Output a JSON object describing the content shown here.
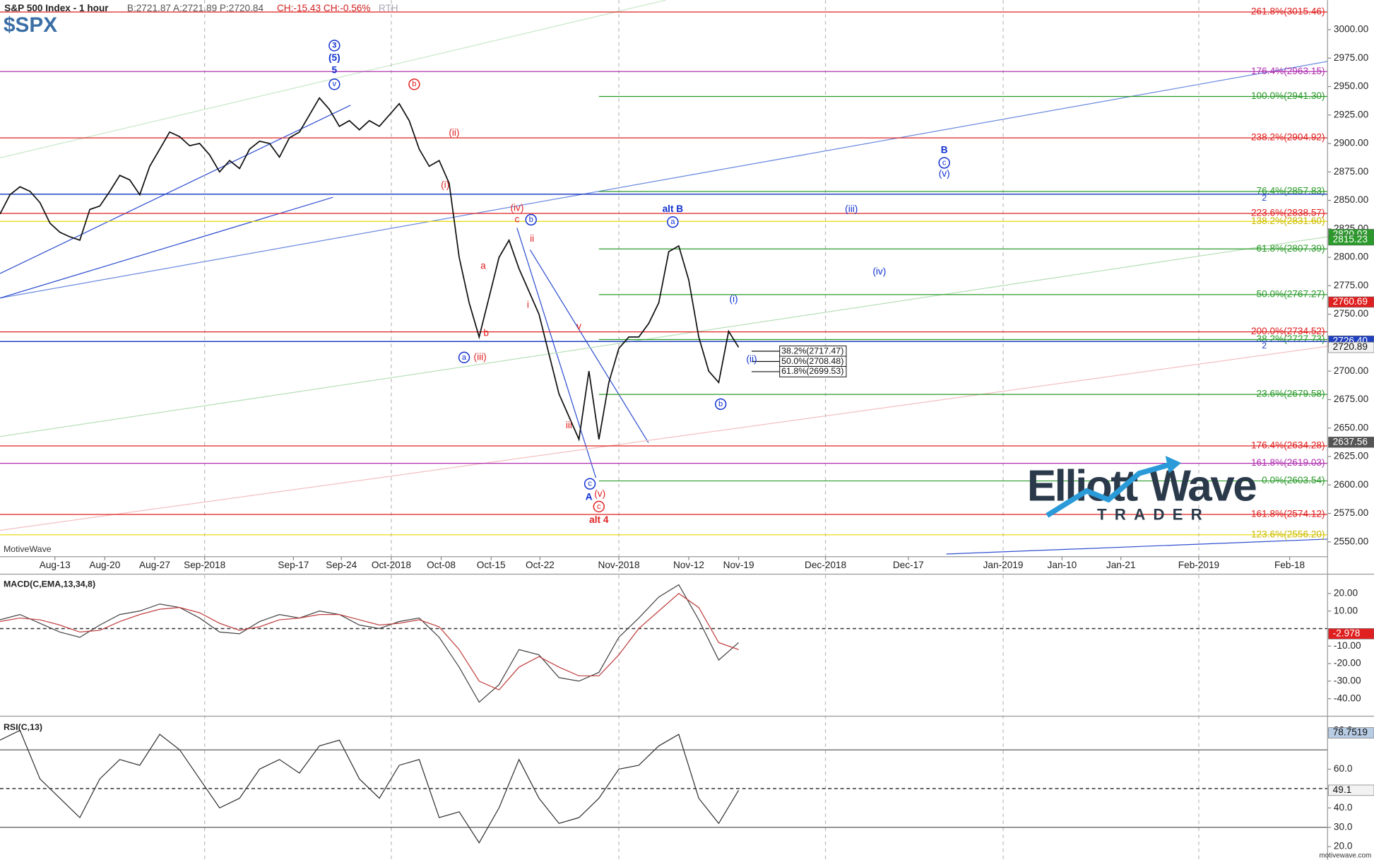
{
  "chart_data": [
    {
      "type": "line",
      "title": "S&P 500 Index - 1 hour",
      "quote": "B:2721.87 A:2721.89 P:2720.84",
      "change": "CH:-15.43 CH:-0.56%",
      "session": "RTH",
      "subtitle": "$SPX",
      "watermark": "MotiveWave",
      "xlim": [
        0,
        133
      ],
      "xticks": [
        {
          "value": 5.5,
          "label": "Aug-13"
        },
        {
          "value": 10.5,
          "label": "Aug-20"
        },
        {
          "value": 15.5,
          "label": "Aug-27"
        },
        {
          "value": 20.5,
          "label": "Sep-2018",
          "grid": true
        },
        {
          "value": 29.4,
          "label": "Sep-17"
        },
        {
          "value": 34.2,
          "label": "Sep-24"
        },
        {
          "value": 39.2,
          "label": "Oct-2018",
          "grid": true
        },
        {
          "value": 44.2,
          "label": "Oct-08"
        },
        {
          "value": 49.2,
          "label": "Oct-15"
        },
        {
          "value": 54.1,
          "label": "Oct-22"
        },
        {
          "value": 62,
          "label": "Nov-2018",
          "grid": true
        },
        {
          "value": 69,
          "label": "Nov-12"
        },
        {
          "value": 74,
          "label": "Nov-19"
        },
        {
          "value": 82.7,
          "label": "Dec-2018",
          "grid": true
        },
        {
          "value": 91,
          "label": "Dec-17"
        },
        {
          "value": 100.5,
          "label": "Jan-2019",
          "grid": true
        },
        {
          "value": 106.4,
          "label": "Jan-10"
        },
        {
          "value": 112.3,
          "label": "Jan-21"
        },
        {
          "value": 120.1,
          "label": "Feb-2019",
          "grid": true
        },
        {
          "value": 129.2,
          "label": "Feb-18"
        }
      ],
      "ylim": [
        2537,
        3026
      ],
      "yticks": [
        {
          "value": 2550,
          "label": "2550.00"
        },
        {
          "value": 2575,
          "label": "2575.00"
        },
        {
          "value": 2600,
          "label": "2600.00"
        },
        {
          "value": 2625,
          "label": "2625.00"
        },
        {
          "value": 2650,
          "label": "2650.00"
        },
        {
          "value": 2675,
          "label": "2675.00"
        },
        {
          "value": 2700,
          "label": "2700.00"
        },
        {
          "value": 2725,
          "label": "2725.00"
        },
        {
          "value": 2750,
          "label": "2750.00"
        },
        {
          "value": 2775,
          "label": "2775.00"
        },
        {
          "value": 2800,
          "label": "2800.00"
        },
        {
          "value": 2825,
          "label": "2825.00"
        },
        {
          "value": 2850,
          "label": "2850.00"
        },
        {
          "value": 2875,
          "label": "2875.00"
        },
        {
          "value": 2900,
          "label": "2900.00"
        },
        {
          "value": 2925,
          "label": "2925.00"
        },
        {
          "value": 2950,
          "label": "2950.00"
        },
        {
          "value": 2975,
          "label": "2975.00"
        },
        {
          "value": 3000,
          "label": "3000.00"
        }
      ],
      "series": [
        {
          "name": "S&P 500 Index",
          "color": "#111111",
          "x": [
            0,
            1,
            2,
            3,
            4,
            5,
            6,
            7,
            8,
            9,
            10,
            11,
            12,
            13,
            14,
            15,
            16,
            17,
            18,
            19,
            20,
            21,
            22,
            23,
            24,
            25,
            26,
            27,
            28,
            29,
            30,
            31,
            32,
            33,
            34,
            35,
            36,
            37,
            38,
            39,
            40,
            41,
            42,
            43,
            44,
            45,
            46,
            47,
            48,
            49,
            50,
            51,
            52,
            53,
            54,
            55,
            56,
            57,
            58,
            59,
            60,
            61,
            62,
            63,
            64,
            65,
            66,
            67,
            68,
            69,
            70,
            71,
            72,
            73,
            74
          ],
          "values": [
            2838,
            2855,
            2862,
            2858,
            2848,
            2830,
            2822,
            2818,
            2815,
            2842,
            2845,
            2858,
            2872,
            2868,
            2855,
            2880,
            2895,
            2910,
            2906,
            2898,
            2900,
            2890,
            2875,
            2885,
            2878,
            2895,
            2902,
            2900,
            2888,
            2905,
            2910,
            2925,
            2940,
            2930,
            2915,
            2920,
            2912,
            2920,
            2915,
            2925,
            2935,
            2920,
            2895,
            2880,
            2885,
            2865,
            2800,
            2760,
            2730,
            2765,
            2800,
            2815,
            2790,
            2770,
            2750,
            2715,
            2680,
            2660,
            2640,
            2700,
            2640,
            2690,
            2720,
            2730,
            2730,
            2742,
            2760,
            2805,
            2810,
            2780,
            2730,
            2700,
            2690,
            2735,
            2721
          ]
        }
      ],
      "levels": [
        {
          "label": "261.8%(3015.46)",
          "value": 3015.46,
          "color": "#e02020"
        },
        {
          "label": "176.4%(2963.15)",
          "value": 2963.15,
          "color": "#b030b0"
        },
        {
          "label": "100.0%(2941.30)",
          "value": 2941.3,
          "color": "#2a9a2a",
          "x0": 60
        },
        {
          "label": "238.2%(2904.92)",
          "value": 2904.92,
          "color": "#e02020"
        },
        {
          "label": "76.4%(2857.83)",
          "value": 2857.83,
          "color": "#2a9a2a",
          "x0": 60
        },
        {
          "label": "223.6%(2838.57)",
          "value": 2838.57,
          "color": "#e02020"
        },
        {
          "label": "138.2%(2831.60)",
          "value": 2831.6,
          "color": "#e8d800"
        },
        {
          "label": "61.8%(2807.39)",
          "value": 2807.39,
          "color": "#2a9a2a",
          "x0": 60
        },
        {
          "label": "50.0%(2767.27)",
          "value": 2767.27,
          "color": "#2a9a2a",
          "x0": 60
        },
        {
          "label": "200.0%(2734.52)",
          "value": 2734.52,
          "color": "#e02020"
        },
        {
          "label": "38.2%(2727.73)",
          "value": 2727.73,
          "color": "#2a9a2a",
          "x0": 60
        },
        {
          "label": "23.6%(2679.58)",
          "value": 2679.58,
          "color": "#2a9a2a",
          "x0": 60
        },
        {
          "label": "176.4%(2634.28)",
          "value": 2634.28,
          "color": "#e02020"
        },
        {
          "label": "161.8%(2619.03)",
          "value": 2619.03,
          "color": "#b030b0"
        },
        {
          "label": "0.0%(2603.54)",
          "value": 2603.54,
          "color": "#2a9a2a",
          "x0": 60
        },
        {
          "label": "161.8%(2574.12)",
          "value": 2574.12,
          "color": "#e02020"
        },
        {
          "label": "123.6%(2556.20)",
          "value": 2556.2,
          "color": "#e8d800"
        }
      ],
      "horizontal_lines": [
        {
          "label": "2",
          "value": 2855.5,
          "color": "#2040c0"
        },
        {
          "label": "2",
          "value": 2726,
          "color": "#2040c0"
        }
      ],
      "box_levels": [
        {
          "label": "38.2%(2717.47)",
          "value": 2717.47,
          "x0": 75.3
        },
        {
          "label": "50.0%(2708.48)",
          "value": 2708.48,
          "x0": 75.3
        },
        {
          "label": "61.8%(2699.53)",
          "value": 2699.53,
          "x0": 75.3
        }
      ],
      "markers": [
        {
          "value": 2820.03,
          "label": "2820.03",
          "color": "#2a9a2a"
        },
        {
          "value": 2815.23,
          "label": "2815.23",
          "color": "#2a9a2a"
        },
        {
          "value": 2760.69,
          "label": "2760.69",
          "color": "#e02020"
        },
        {
          "value": 2726.4,
          "label": "2726.40",
          "color": "#2040c0"
        },
        {
          "value": 2720.89,
          "label": "2720.89",
          "color": "#f2f2f2"
        },
        {
          "value": 2637.56,
          "label": "2637.56",
          "color": "#555555"
        }
      ],
      "annotations": [
        {
          "text": "3",
          "x": 33.5,
          "y": 2986,
          "color": "#1030d0",
          "circled": true,
          "bold": true
        },
        {
          "text": "(5)",
          "x": 33.5,
          "y": 2975,
          "color": "#1030d0",
          "bold": true
        },
        {
          "text": "5",
          "x": 33.5,
          "y": 2964,
          "color": "#1030d0",
          "bold": true
        },
        {
          "text": "v",
          "x": 33.5,
          "y": 2952,
          "color": "#1030d0",
          "circled": true
        },
        {
          "text": "b",
          "x": 41.5,
          "y": 2952,
          "color": "#e02020",
          "circled": true
        },
        {
          "text": "(ii)",
          "x": 45.5,
          "y": 2909,
          "color": "#e02020"
        },
        {
          "text": "(i)",
          "x": 44.6,
          "y": 2863,
          "color": "#e02020"
        },
        {
          "text": "(iv)",
          "x": 51.8,
          "y": 2843,
          "color": "#e02020"
        },
        {
          "text": "c",
          "x": 51.8,
          "y": 2833,
          "color": "#e02020"
        },
        {
          "text": "b",
          "x": 53.2,
          "y": 2833,
          "color": "#1030d0",
          "circled": true
        },
        {
          "text": "ii",
          "x": 53.3,
          "y": 2816,
          "color": "#e02020"
        },
        {
          "text": "a",
          "x": 48.4,
          "y": 2792,
          "color": "#e02020"
        },
        {
          "text": "i",
          "x": 52.9,
          "y": 2758,
          "color": "#e02020"
        },
        {
          "text": "b",
          "x": 48.7,
          "y": 2733,
          "color": "#e02020"
        },
        {
          "text": "a",
          "x": 46.5,
          "y": 2712,
          "color": "#1030d0",
          "circled": true
        },
        {
          "text": "(iii)",
          "x": 48.1,
          "y": 2712,
          "color": "#e02020"
        },
        {
          "text": "v",
          "x": 58,
          "y": 2739,
          "color": "#e02020"
        },
        {
          "text": "iii",
          "x": 57,
          "y": 2652,
          "color": "#e02020"
        },
        {
          "text": "c",
          "x": 59.1,
          "y": 2601,
          "color": "#1030d0",
          "circled": true
        },
        {
          "text": "A",
          "x": 59,
          "y": 2589,
          "color": "#1030d0",
          "bold": true
        },
        {
          "text": "(v)",
          "x": 60.1,
          "y": 2592,
          "color": "#e02020"
        },
        {
          "text": "c",
          "x": 60,
          "y": 2581,
          "color": "#e02020",
          "circled": true
        },
        {
          "text": "alt 4",
          "x": 60,
          "y": 2569,
          "color": "#e02020",
          "bold": true
        },
        {
          "text": "alt B",
          "x": 67.4,
          "y": 2842,
          "color": "#1030d0",
          "bold": true
        },
        {
          "text": "a",
          "x": 67.4,
          "y": 2831,
          "color": "#1030d0",
          "circled": true
        },
        {
          "text": "(i)",
          "x": 73.5,
          "y": 2763,
          "color": "#1030d0"
        },
        {
          "text": "(ii)",
          "x": 75.3,
          "y": 2710,
          "color": "#1030d0"
        },
        {
          "text": "b",
          "x": 72.2,
          "y": 2671,
          "color": "#1030d0",
          "circled": true
        },
        {
          "text": "B",
          "x": 94.6,
          "y": 2894,
          "color": "#1030d0",
          "bold": true
        },
        {
          "text": "c",
          "x": 94.6,
          "y": 2883,
          "color": "#1030d0",
          "circled": true
        },
        {
          "text": "(v)",
          "x": 94.6,
          "y": 2873,
          "color": "#1030d0"
        },
        {
          "text": "(iii)",
          "x": 85.3,
          "y": 2842,
          "color": "#1030d0"
        },
        {
          "text": "(iv)",
          "x": 88.1,
          "y": 2787,
          "color": "#1030d0"
        }
      ]
    },
    {
      "type": "line",
      "title": "MACD(C,EMA,13,34,8)",
      "ylim": [
        -49,
        31
      ],
      "yticks": [
        {
          "value": 20,
          "label": "20.00"
        },
        {
          "value": 10,
          "label": "10.00"
        },
        {
          "value": -10,
          "label": "-10.00"
        },
        {
          "value": -20,
          "label": "-20.00"
        },
        {
          "value": -30,
          "label": "-30.00"
        },
        {
          "value": -40,
          "label": "-40.00"
        }
      ],
      "reference_lines": [
        0
      ],
      "dashed_lines": [
        0
      ],
      "x": [
        0,
        2,
        4,
        6,
        8,
        10,
        12,
        14,
        16,
        18,
        20,
        22,
        24,
        26,
        28,
        30,
        32,
        34,
        36,
        38,
        40,
        42,
        44,
        46,
        48,
        50,
        52,
        54,
        56,
        58,
        60,
        62,
        64,
        66,
        68,
        70,
        72,
        74
      ],
      "series": [
        {
          "name": "MACD",
          "color": "#444444",
          "values": [
            5,
            8,
            3,
            -2,
            -5,
            2,
            8,
            10,
            14,
            12,
            6,
            -2,
            -3,
            4,
            8,
            6,
            10,
            8,
            2,
            0,
            4,
            6,
            -5,
            -22,
            -42,
            -32,
            -12,
            -15,
            -28,
            -30,
            -25,
            -5,
            6,
            18,
            25,
            5,
            -18,
            -8
          ]
        },
        {
          "name": "Signal",
          "color": "#c04040",
          "values": [
            4,
            6,
            5,
            2,
            -2,
            -1,
            4,
            8,
            11,
            12,
            9,
            3,
            -1,
            1,
            5,
            6,
            8,
            8,
            5,
            2,
            3,
            5,
            1,
            -12,
            -30,
            -35,
            -22,
            -16,
            -22,
            -27,
            -27,
            -15,
            0,
            10,
            20,
            12,
            -8,
            -12
          ]
        }
      ],
      "markers": [
        {
          "value": -2.978,
          "label": "-2.978",
          "color": "#e02020"
        }
      ]
    },
    {
      "type": "line",
      "title": "RSI(C,13)",
      "ylim": [
        14.5,
        86.9
      ],
      "yticks": [
        {
          "value": 80,
          "label": "80.0"
        },
        {
          "value": 60,
          "label": "60.0"
        },
        {
          "value": 40,
          "label": "40.0"
        },
        {
          "value": 30,
          "label": "30.0"
        },
        {
          "value": 20,
          "label": "20.0"
        }
      ],
      "reference_lines": [
        70,
        50,
        30
      ],
      "dashed_lines": [
        50
      ],
      "x": [
        0,
        2,
        4,
        6,
        8,
        10,
        12,
        14,
        16,
        18,
        20,
        22,
        24,
        26,
        28,
        30,
        32,
        34,
        36,
        38,
        40,
        42,
        44,
        46,
        48,
        50,
        52,
        54,
        56,
        58,
        60,
        62,
        64,
        66,
        68,
        70,
        72,
        74
      ],
      "series": [
        {
          "name": "RSI",
          "color": "#333333",
          "values": [
            75,
            80,
            55,
            45,
            35,
            55,
            65,
            62,
            78,
            70,
            55,
            40,
            45,
            60,
            65,
            58,
            72,
            75,
            55,
            45,
            62,
            65,
            35,
            38,
            22,
            40,
            65,
            45,
            32,
            35,
            45,
            60,
            62,
            72,
            78,
            45,
            32,
            49.1
          ]
        }
      ],
      "markers": [
        {
          "value": 78.7519,
          "label": "78.7519",
          "color": "#b8cce4"
        },
        {
          "value": 49.1,
          "label": "49.1",
          "color": "#f2f2f2"
        }
      ]
    }
  ],
  "logo": {
    "word1": "Elliott",
    "word2": "Wave",
    "word3": "TRADER"
  },
  "footer": "motivewave.com"
}
